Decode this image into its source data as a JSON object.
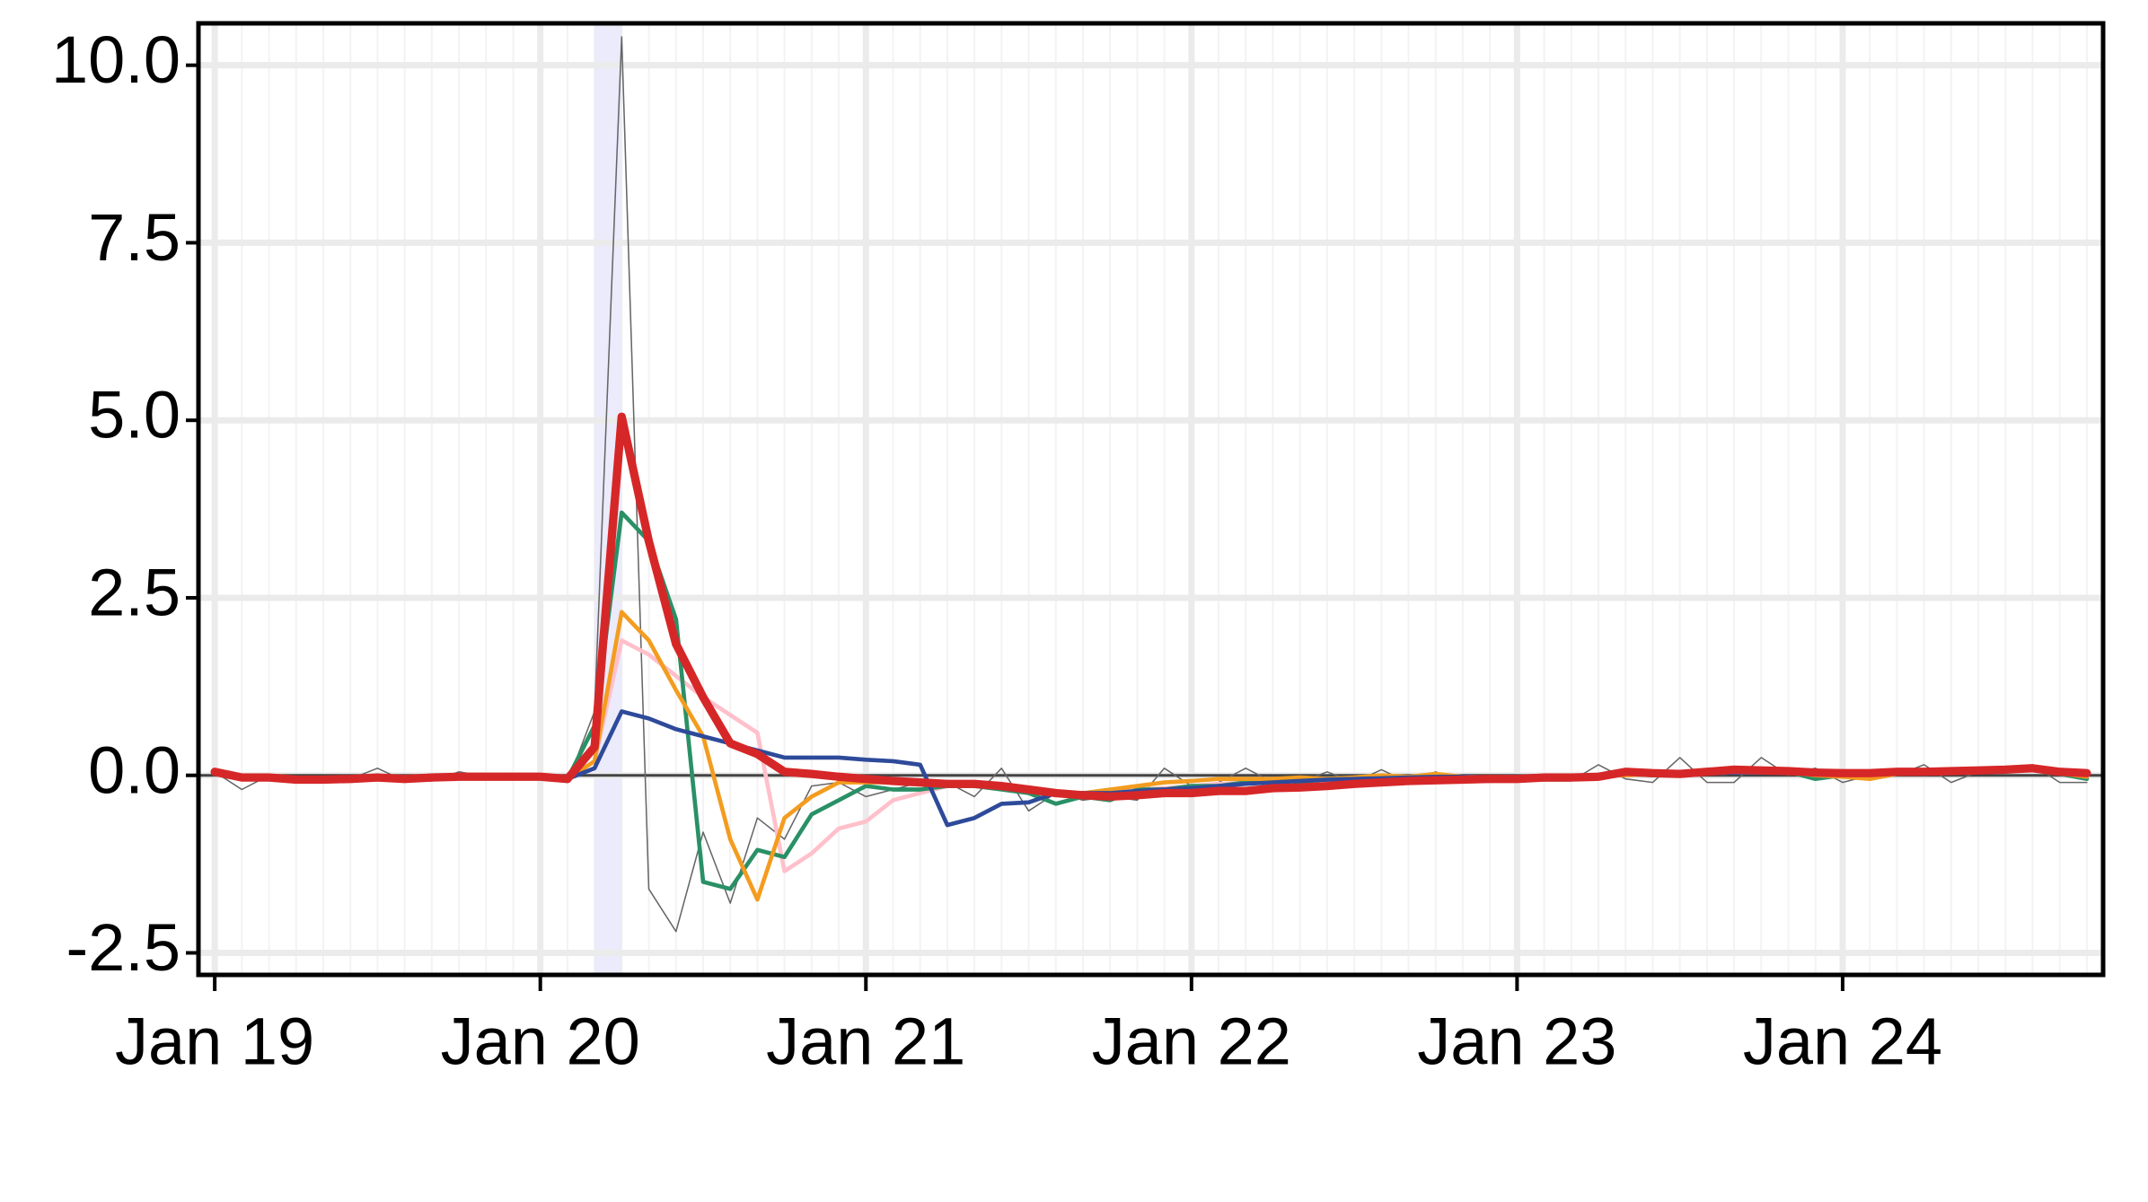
{
  "chart_data": {
    "type": "line",
    "x": [
      0,
      1,
      2,
      3,
      4,
      5,
      6,
      7,
      8,
      9,
      10,
      11,
      12,
      13,
      14,
      15,
      16,
      17,
      18,
      19,
      20,
      21,
      22,
      23,
      24,
      25,
      26,
      27,
      28,
      29,
      30,
      31,
      32,
      33,
      34,
      35,
      36,
      37,
      38,
      39,
      40,
      41,
      42,
      43,
      44,
      45,
      46,
      47,
      48,
      49,
      50,
      51,
      52,
      53,
      54,
      55,
      56,
      57,
      58,
      59,
      60,
      61,
      62,
      63,
      64,
      65,
      66,
      67,
      68,
      69
    ],
    "xlim": [
      -0.6,
      69.6
    ],
    "xticks": [
      {
        "value": 0,
        "label": "Jan 19"
      },
      {
        "value": 12,
        "label": "Jan 20"
      },
      {
        "value": 24,
        "label": "Jan 21"
      },
      {
        "value": 36,
        "label": "Jan 22"
      },
      {
        "value": 48,
        "label": "Jan 23"
      },
      {
        "value": 60,
        "label": "Jan 24"
      }
    ],
    "ylim": [
      -2.81,
      10.59
    ],
    "yticks": [
      {
        "value": -2.5,
        "label": "-2.5"
      },
      {
        "value": 0,
        "label": "0.0"
      },
      {
        "value": 2.5,
        "label": "2.5"
      },
      {
        "value": 5,
        "label": "5.0"
      },
      {
        "value": 7.5,
        "label": "7.5"
      },
      {
        "value": 10,
        "label": "10.0"
      }
    ],
    "grid": true,
    "highlight_x": [
      14,
      15
    ],
    "reference_line": 0,
    "series": [
      {
        "color": "#666666",
        "width": 1,
        "values": [
          0.05,
          -0.2,
          0.0,
          -0.1,
          -0.05,
          -0.05,
          0.1,
          -0.08,
          -0.08,
          0.05,
          -0.02,
          0.0,
          -0.02,
          -0.1,
          0.9,
          10.4,
          -1.6,
          -2.2,
          -0.8,
          -1.8,
          -0.6,
          -0.9,
          -0.15,
          -0.1,
          -0.3,
          -0.2,
          -0.1,
          -0.1,
          -0.3,
          0.1,
          -0.5,
          -0.25,
          -0.35,
          -0.3,
          -0.35,
          0.1,
          -0.15,
          -0.1,
          0.1,
          -0.1,
          -0.1,
          0.05,
          -0.1,
          0.08,
          -0.1,
          0.05,
          -0.1,
          0.0,
          -0.05,
          -0.08,
          -0.08,
          0.15,
          -0.05,
          -0.1,
          0.25,
          -0.1,
          -0.1,
          0.25,
          0.0,
          0.1,
          -0.1,
          0.0,
          0.0,
          0.15,
          -0.1,
          0.05,
          0.05,
          0.15,
          -0.1,
          -0.1
        ]
      },
      {
        "color": "#ffc0cb",
        "width": 3,
        "values": [
          0.02,
          -0.03,
          -0.03,
          -0.05,
          -0.05,
          -0.04,
          -0.03,
          -0.04,
          -0.02,
          -0.02,
          -0.02,
          -0.02,
          -0.02,
          -0.05,
          0.2,
          1.9,
          1.7,
          1.4,
          1.1,
          0.85,
          0.6,
          -1.35,
          -1.1,
          -0.75,
          -0.65,
          -0.35,
          -0.25,
          -0.15,
          -0.15,
          -0.18,
          -0.22,
          -0.25,
          -0.25,
          -0.25,
          -0.2,
          -0.18,
          -0.15,
          -0.12,
          -0.1,
          -0.08,
          -0.07,
          -0.06,
          -0.05,
          -0.04,
          -0.03,
          -0.02,
          -0.02,
          -0.03,
          -0.02,
          -0.01,
          -0.01,
          0.0,
          0.02,
          0.02,
          0.02,
          0.03,
          0.04,
          0.04,
          0.04,
          0.02,
          0.02,
          0.02,
          0.03,
          0.03,
          0.04,
          0.05,
          0.06,
          0.08,
          0.04,
          0.02
        ]
      },
      {
        "color": "#2a9066",
        "width": 3,
        "values": [
          0.03,
          -0.02,
          -0.02,
          -0.05,
          -0.06,
          -0.05,
          -0.03,
          -0.04,
          -0.03,
          -0.02,
          -0.02,
          -0.02,
          -0.02,
          -0.05,
          0.7,
          3.7,
          3.3,
          2.2,
          -1.5,
          -1.6,
          -1.05,
          -1.15,
          -0.55,
          -0.35,
          -0.15,
          -0.2,
          -0.2,
          -0.15,
          -0.15,
          -0.2,
          -0.25,
          -0.4,
          -0.3,
          -0.35,
          -0.2,
          -0.2,
          -0.15,
          -0.15,
          -0.1,
          -0.05,
          -0.1,
          -0.05,
          -0.05,
          -0.02,
          -0.05,
          0.0,
          -0.05,
          -0.05,
          -0.02,
          -0.02,
          -0.02,
          0.0,
          0.02,
          0.0,
          0.0,
          0.03,
          0.05,
          0.07,
          0.05,
          -0.05,
          0.0,
          0.02,
          0.03,
          0.02,
          0.04,
          0.05,
          0.06,
          0.1,
          0.02,
          -0.05
        ]
      },
      {
        "color": "#f39c1f",
        "width": 3,
        "values": [
          0.02,
          -0.02,
          -0.03,
          -0.05,
          -0.05,
          -0.04,
          -0.03,
          -0.04,
          -0.02,
          -0.02,
          -0.02,
          -0.02,
          -0.02,
          -0.05,
          0.2,
          2.3,
          1.9,
          1.2,
          0.55,
          -0.9,
          -1.75,
          -0.6,
          -0.3,
          -0.1,
          -0.1,
          -0.1,
          -0.1,
          -0.1,
          -0.12,
          -0.15,
          -0.2,
          -0.25,
          -0.25,
          -0.2,
          -0.15,
          -0.1,
          -0.08,
          -0.05,
          -0.05,
          -0.05,
          -0.03,
          -0.05,
          -0.03,
          0.0,
          -0.02,
          0.02,
          -0.02,
          -0.05,
          -0.03,
          -0.02,
          -0.02,
          0.0,
          0.0,
          0.02,
          0.02,
          0.03,
          0.05,
          0.04,
          0.05,
          0.0,
          -0.02,
          -0.05,
          0.02,
          0.03,
          0.05,
          0.05,
          0.06,
          0.1,
          0.03,
          -0.02
        ]
      },
      {
        "color": "#2e4a9a",
        "width": 3,
        "values": [
          0.02,
          -0.02,
          -0.03,
          -0.05,
          -0.05,
          -0.04,
          -0.03,
          -0.04,
          -0.02,
          -0.02,
          -0.02,
          -0.02,
          -0.02,
          -0.05,
          0.1,
          0.9,
          0.8,
          0.65,
          0.55,
          0.45,
          0.35,
          0.25,
          0.25,
          0.25,
          0.22,
          0.2,
          0.15,
          -0.7,
          -0.6,
          -0.4,
          -0.38,
          -0.25,
          -0.25,
          -0.25,
          -0.22,
          -0.2,
          -0.18,
          -0.15,
          -0.12,
          -0.1,
          -0.08,
          -0.06,
          -0.05,
          -0.04,
          -0.03,
          -0.02,
          -0.02,
          -0.03,
          -0.02,
          -0.01,
          -0.01,
          0.0,
          0.02,
          0.02,
          0.02,
          0.03,
          0.04,
          0.04,
          0.04,
          0.02,
          0.02,
          0.02,
          0.03,
          0.03,
          0.04,
          0.05,
          0.06,
          0.08,
          0.04,
          0.02
        ]
      },
      {
        "color": "#d62728",
        "width": 6,
        "values": [
          0.05,
          -0.03,
          -0.03,
          -0.06,
          -0.06,
          -0.05,
          -0.03,
          -0.05,
          -0.03,
          -0.02,
          -0.02,
          -0.02,
          -0.02,
          -0.05,
          0.4,
          5.05,
          3.3,
          1.85,
          1.1,
          0.45,
          0.3,
          0.05,
          0.02,
          -0.02,
          -0.05,
          -0.08,
          -0.1,
          -0.12,
          -0.12,
          -0.15,
          -0.2,
          -0.25,
          -0.28,
          -0.3,
          -0.28,
          -0.25,
          -0.25,
          -0.22,
          -0.22,
          -0.18,
          -0.17,
          -0.15,
          -0.12,
          -0.1,
          -0.08,
          -0.07,
          -0.06,
          -0.05,
          -0.05,
          -0.03,
          -0.03,
          -0.02,
          0.05,
          0.03,
          0.02,
          0.05,
          0.08,
          0.07,
          0.06,
          0.04,
          0.03,
          0.03,
          0.05,
          0.05,
          0.06,
          0.07,
          0.08,
          0.1,
          0.05,
          0.03
        ]
      }
    ]
  }
}
